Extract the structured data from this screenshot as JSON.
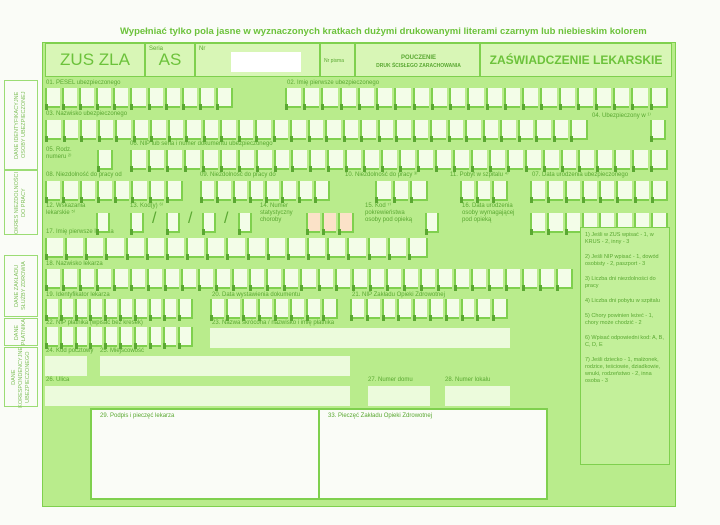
{
  "title": "Wypełniać tylko pola jasne w wyznaczonych kratkach dużymi drukowanymi literami czarnym lub niebieskim kolorem",
  "header": {
    "form_code": "ZUS ZLA",
    "series_label": "Seria",
    "series": "AS",
    "number_label": "Nr",
    "small_label": "Nr pisma",
    "notice_label": "POUCZENIE",
    "strict_print": "DRUK ŚCISŁEGO ZARACHOWANIA",
    "doc_title": "ZAŚWIADCZENIE LEKARSKIE"
  },
  "sections": {
    "insured": "DANE IDENTYFIKACYJNE OSOBY UBEZPIECZONEJ",
    "period": "OKRES NIEZDOLNOŚCI DO PRACY",
    "facility": "DANE ZAKŁADU SŁUŻBY ZDROWIA",
    "payer": "DANE PŁATNIKA",
    "correspondence": "DANE KORESPONDENCYJNE UBEZPIECZONEGO"
  },
  "fields": {
    "f01": "01. PESEL ubezpieczonego",
    "f02": "02. Imię pierwsze ubezpieczonego",
    "f03": "03. Nazwisko ubezpieczonego",
    "f04": "04. Ubezpieczony w ¹⁾",
    "f05": "05. Rodz. numeru ²⁾",
    "f06": "06. NIP lub seria i numer dokumentu ubezpieczonego",
    "f08": "08. Niezdolność do pracy od",
    "f09": "09. Niezdolność do pracy do",
    "f10": "10. Niezdolność do pracy ³⁾",
    "f11": "11. Pobyt w szpitalu ⁴⁾",
    "f07": "07. Data urodzenia ubezpieczonego",
    "f12": "12. Wskazania lekarskie ⁵⁾",
    "f13": "13. Kod(y) ⁶⁾",
    "f14": "14. Numer statystyczny choroby",
    "f15": "15. Kod ⁷⁾ pokrewieństwa osoby pod opieką",
    "f16": "16. Data urodzenia osoby wymagającej pod opieką",
    "f17": "17. Imię pierwsze lekarza",
    "f18": "18. Nazwisko lekarza",
    "f19": "19. Identyfikator lekarza",
    "f20": "20. Data wystawienia dokumentu",
    "f21": "21. NIP Zakładu Opieki Zdrowotnej",
    "f22": "22. NIP płatnika (wpisać bez kresek)",
    "f23": "23. Nazwa skrócona / nazwisko i imię płatnika",
    "f24": "24. Kod pocztowy",
    "f25": "25. Miejscowość",
    "f26": "26. Ulica",
    "f27": "27. Numer domu",
    "f28": "28. Numer lokalu",
    "f29": "29. Podpis i pieczęć lekarza",
    "f33": "33. Pieczęć Zakładu Opieki Zdrowotnej"
  },
  "notes": [
    "1) Jeśli w ZUS wpisać - 1, w KRUS - 2, inny - 3",
    "2) Jeśli NIP wpisać - 1, dowód osobisty - 2, paszport - 3",
    "3) Liczba dni niezdolności do pracy",
    "4) Liczba dni pobytu w szpitalu",
    "5) Chory powinien leżeć - 1, chory może chodzić - 2",
    "6) Wpisać odpowiedni kod: A, B, C, D, E",
    "7) Jeśli dziecko - 1, małżonek, rodzice, teściowie, dziadkowie, wnuki, rodzeństwo - 2, inna osoba - 3"
  ],
  "colors": {
    "form": "#b9ec8c",
    "field": "#f3fde8",
    "line": "#7fd04e",
    "text": "#5aa832",
    "highlight": "#fbe2c8"
  }
}
